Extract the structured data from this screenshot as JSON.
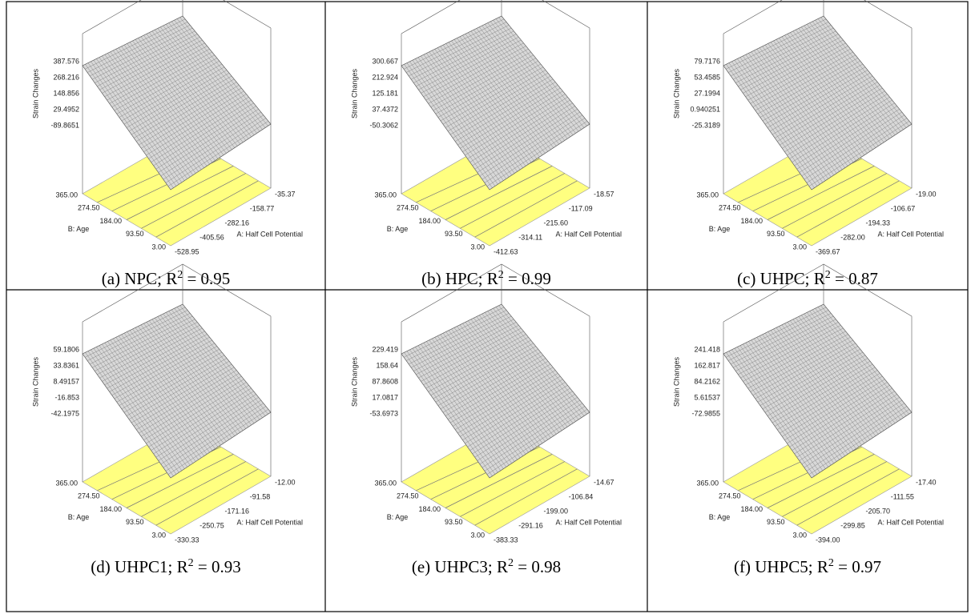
{
  "axis_labels": {
    "z": "Strain Changes",
    "age": "B: Age",
    "hcp": "A: Half Cell Potential"
  },
  "panels": [
    {
      "caption": {
        "text": "(a) NPC; R",
        "sup": "2",
        "tail": " = 0.95"
      },
      "z_ticks": [
        "387.576",
        "268.216",
        "148.856",
        "29.4952",
        "-89.8651"
      ],
      "age_ticks": [
        "365.00",
        "274.50",
        "184.00",
        "93.50",
        "3.00"
      ],
      "hcp_ticks": [
        "-528.95",
        "-405.56",
        "-282.16",
        "-158.77",
        "-35.37"
      ]
    },
    {
      "caption": {
        "text": "(b)  HPC; R",
        "sup": "2",
        "tail": " = 0.99"
      },
      "z_ticks": [
        "300.667",
        "212.924",
        "125.181",
        "37.4372",
        "-50.3062"
      ],
      "age_ticks": [
        "365.00",
        "274.50",
        "184.00",
        "93.50",
        "3.00"
      ],
      "hcp_ticks": [
        "-412.63",
        "-314.11",
        "-215.60",
        "-117.09",
        "-18.57"
      ]
    },
    {
      "caption": {
        "text": "(c)  UHPC; R",
        "sup": "2",
        "tail": " = 0.87"
      },
      "z_ticks": [
        "79.7176",
        "53.4585",
        "27.1994",
        "0.940251",
        "-25.3189"
      ],
      "age_ticks": [
        "365.00",
        "274.50",
        "184.00",
        "93.50",
        "3.00"
      ],
      "hcp_ticks": [
        "-369.67",
        "-282.00",
        "-194.33",
        "-106.67",
        "-19.00"
      ]
    },
    {
      "caption": {
        "text": "(d)  UHPC1; R",
        "sup": "2",
        "tail": " = 0.93"
      },
      "z_ticks": [
        "59.1806",
        "33.8361",
        "8.49157",
        "-16.853",
        "-42.1975"
      ],
      "age_ticks": [
        "365.00",
        "274.50",
        "184.00",
        "93.50",
        "3.00"
      ],
      "hcp_ticks": [
        "-330.33",
        "-250.75",
        "-171.16",
        "-91.58",
        "-12.00"
      ]
    },
    {
      "caption": {
        "text": "(e)  UHPC3; R",
        "sup": "2",
        "tail": " = 0.98"
      },
      "z_ticks": [
        "229.419",
        "158.64",
        "87.8608",
        "17.0817",
        "-53.6973"
      ],
      "age_ticks": [
        "365.00",
        "274.50",
        "184.00",
        "93.50",
        "3.00"
      ],
      "hcp_ticks": [
        "-383.33",
        "-291.16",
        "-199.00",
        "-106.84",
        "-14.67"
      ]
    },
    {
      "caption": {
        "text": "(f)  UHPC5; R",
        "sup": "2",
        "tail": " = 0.97"
      },
      "z_ticks": [
        "241.418",
        "162.817",
        "84.2162",
        "5.61537",
        "-72.9855"
      ],
      "age_ticks": [
        "365.00",
        "274.50",
        "184.00",
        "93.50",
        "3.00"
      ],
      "hcp_ticks": [
        "-394.00",
        "-299.85",
        "-205.70",
        "-111.55",
        "-17.40"
      ]
    }
  ]
}
